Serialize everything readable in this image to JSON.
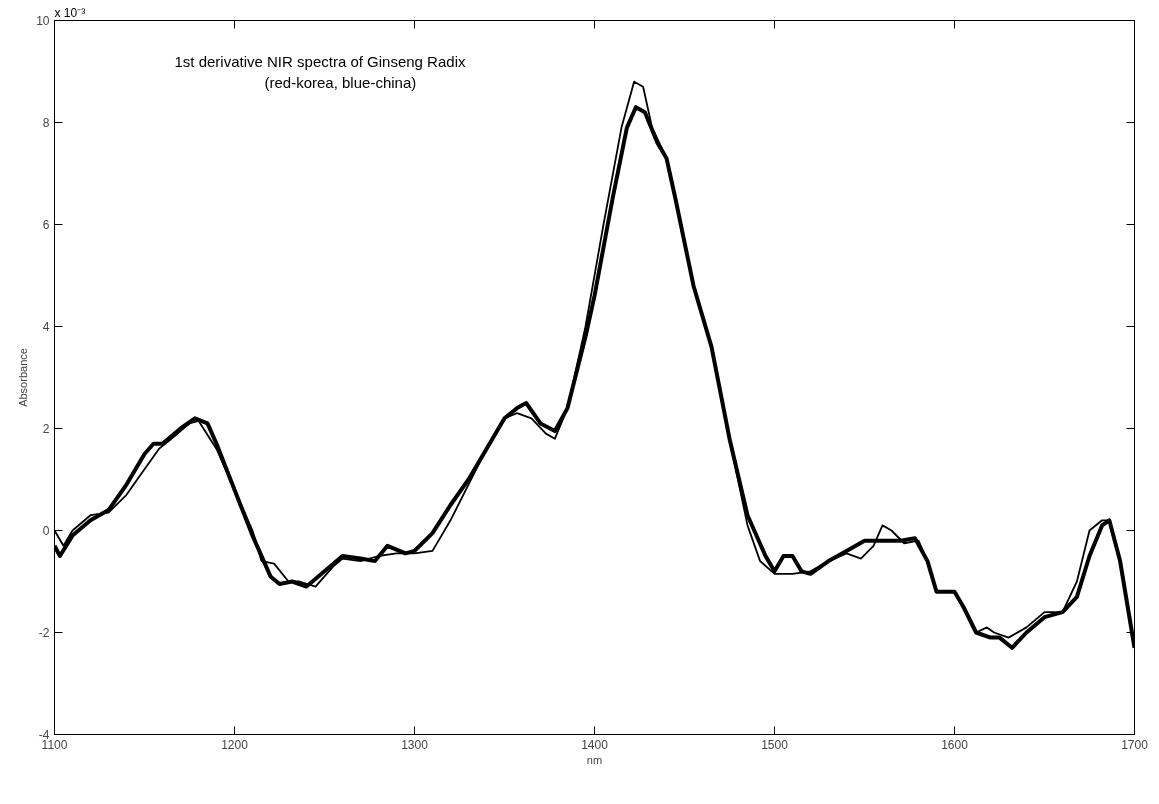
{
  "chart_data": {
    "type": "line",
    "title": "1st derivative NIR spectra of Ginseng Radix",
    "subtitle": "(red-korea, blue-china)",
    "xlabel": "nm",
    "ylabel": "Absorbance",
    "annotations": [
      "x 10⁻³"
    ],
    "xlim": [
      1100,
      1700
    ],
    "xticks": [
      1100,
      1200,
      1300,
      1400,
      1500,
      1600,
      1700
    ],
    "ylim": [
      -4,
      10
    ],
    "yticks": [
      -4,
      -2,
      0,
      2,
      4,
      6,
      8,
      10
    ],
    "grid": false,
    "series": [
      {
        "color": "#000000",
        "x": [
          1100,
          1105,
          1110,
          1120,
          1130,
          1140,
          1150,
          1158,
          1165,
          1175,
          1180,
          1190,
          1200,
          1210,
          1215,
          1222,
          1230,
          1236,
          1245,
          1255,
          1260,
          1270,
          1280,
          1290,
          1300,
          1310,
          1320,
          1330,
          1340,
          1350,
          1357,
          1365,
          1373,
          1378,
          1385,
          1395,
          1405,
          1415,
          1422,
          1427,
          1432,
          1440,
          1445,
          1455,
          1465,
          1475,
          1485,
          1492,
          1500,
          1510,
          1520,
          1530,
          1540,
          1548,
          1555,
          1560,
          1565,
          1572,
          1580,
          1585,
          1590,
          1600,
          1605,
          1612,
          1618,
          1622,
          1630,
          1640,
          1650,
          1660,
          1668,
          1675,
          1682,
          1686,
          1692,
          1700
        ],
        "values": [
          0,
          -0.3,
          0,
          0.3,
          0.35,
          0.7,
          1.2,
          1.6,
          1.8,
          2.1,
          2.15,
          1.6,
          0.8,
          0,
          -0.6,
          -0.65,
          -1,
          -1,
          -1.1,
          -0.7,
          -0.55,
          -0.6,
          -0.5,
          -0.45,
          -0.45,
          -0.4,
          0.2,
          0.9,
          1.6,
          2.2,
          2.3,
          2.2,
          1.9,
          1.8,
          2.4,
          4,
          6,
          7.9,
          8.8,
          8.7,
          7.9,
          7.3,
          6.5,
          4.8,
          3.6,
          1.8,
          0.1,
          -0.6,
          -0.85,
          -0.85,
          -0.8,
          -0.6,
          -0.45,
          -0.55,
          -0.3,
          0.1,
          0,
          -0.25,
          -0.2,
          -0.6,
          -1.2,
          -1.2,
          -1.5,
          -2,
          -1.9,
          -2,
          -2.1,
          -1.9,
          -1.6,
          -1.6,
          -1,
          0,
          0.2,
          0.2,
          -0.6,
          -2.3
        ]
      },
      {
        "color": "#000000",
        "x": [
          1100,
          1103,
          1110,
          1120,
          1130,
          1140,
          1150,
          1155,
          1160,
          1170,
          1178,
          1185,
          1190,
          1200,
          1210,
          1220,
          1225,
          1232,
          1240,
          1250,
          1260,
          1270,
          1278,
          1285,
          1295,
          1300,
          1310,
          1320,
          1330,
          1340,
          1350,
          1357,
          1362,
          1370,
          1378,
          1385,
          1395,
          1400,
          1410,
          1418,
          1423,
          1428,
          1435,
          1440,
          1445,
          1455,
          1465,
          1475,
          1485,
          1495,
          1500,
          1505,
          1510,
          1515,
          1520,
          1530,
          1540,
          1550,
          1560,
          1570,
          1578,
          1585,
          1590,
          1600,
          1605,
          1612,
          1620,
          1625,
          1632,
          1640,
          1650,
          1660,
          1668,
          1675,
          1682,
          1686,
          1692,
          1700
        ],
        "values": [
          -0.3,
          -0.5,
          -0.1,
          0.2,
          0.4,
          0.9,
          1.5,
          1.7,
          1.7,
          2,
          2.2,
          2.1,
          1.7,
          0.8,
          -0.1,
          -0.9,
          -1.05,
          -1,
          -1.1,
          -0.8,
          -0.5,
          -0.55,
          -0.6,
          -0.3,
          -0.45,
          -0.4,
          -0.05,
          0.5,
          1,
          1.6,
          2.2,
          2.4,
          2.5,
          2.1,
          1.95,
          2.4,
          3.8,
          4.6,
          6.5,
          7.9,
          8.3,
          8.2,
          7.6,
          7.3,
          6.5,
          4.8,
          3.6,
          1.8,
          0.3,
          -0.5,
          -0.8,
          -0.5,
          -0.5,
          -0.8,
          -0.85,
          -0.6,
          -0.4,
          -0.2,
          -0.2,
          -0.2,
          -0.15,
          -0.6,
          -1.2,
          -1.2,
          -1.5,
          -2,
          -2.1,
          -2.1,
          -2.3,
          -2,
          -1.7,
          -1.6,
          -1.3,
          -0.5,
          0.1,
          0.2,
          -0.6,
          -2.3
        ]
      }
    ]
  }
}
